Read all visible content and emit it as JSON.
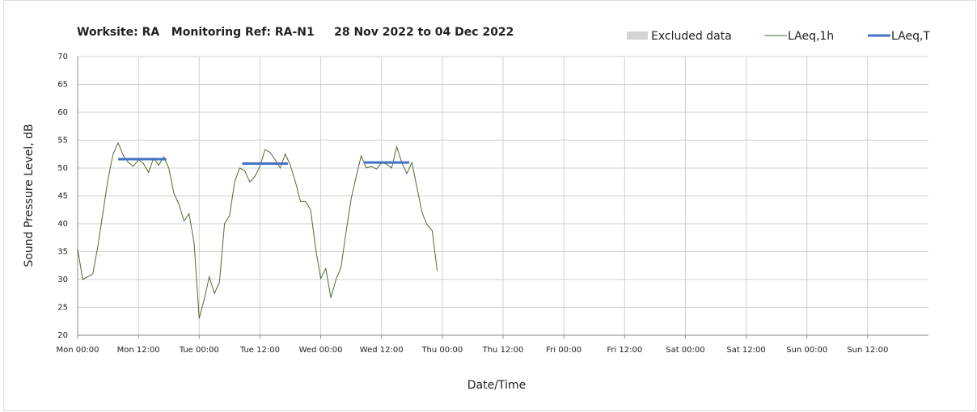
{
  "chart_data": {
    "type": "line",
    "title": "Worksite: RA   Monitoring Ref: RA-N1     28 Nov 2022 to 04 Dec 2022",
    "xlabel": "Date/Time",
    "ylabel": "Sound Pressure Level, dB",
    "xlim": [
      0,
      168
    ],
    "xticks": [
      {
        "value": 0,
        "label": "Mon 00:00"
      },
      {
        "value": 12,
        "label": "Mon 12:00"
      },
      {
        "value": 24,
        "label": "Tue 00:00"
      },
      {
        "value": 36,
        "label": "Tue 12:00"
      },
      {
        "value": 48,
        "label": "Wed 00:00"
      },
      {
        "value": 60,
        "label": "Wed 12:00"
      },
      {
        "value": 72,
        "label": "Thu 00:00"
      },
      {
        "value": 84,
        "label": "Thu 12:00"
      },
      {
        "value": 96,
        "label": "Fri 00:00"
      },
      {
        "value": 108,
        "label": "Fri 12:00"
      },
      {
        "value": 120,
        "label": "Sat 00:00"
      },
      {
        "value": 132,
        "label": "Sat 12:00"
      },
      {
        "value": 144,
        "label": "Sun 00:00"
      },
      {
        "value": 156,
        "label": "Sun 12:00"
      }
    ],
    "ylim": [
      20,
      70
    ],
    "yticks": [
      20,
      25,
      30,
      35,
      40,
      45,
      50,
      55,
      60,
      65,
      70
    ],
    "grid": true,
    "excluded": {
      "name": "Excluded data",
      "color": "#d4d4d4"
    },
    "series": [
      {
        "name": "LAeq,1h",
        "color": "#4f6b2f",
        "width": 1,
        "x": [
          0,
          1,
          2,
          3,
          4,
          5,
          6,
          7,
          8,
          9,
          10,
          11,
          12,
          13,
          14,
          15,
          16,
          17,
          18,
          19,
          20,
          21,
          22,
          23,
          24,
          25,
          26,
          27,
          28,
          29,
          30,
          31,
          32,
          33,
          34,
          35,
          36,
          37,
          38,
          39,
          40,
          41,
          42,
          43,
          44,
          45,
          46,
          47,
          48,
          49,
          50,
          51,
          52,
          53,
          54,
          55,
          56,
          57,
          58,
          59,
          60,
          61,
          62,
          63,
          64,
          65,
          66,
          67,
          68,
          69,
          70,
          71
        ],
        "values": [
          35.5,
          30,
          30.5,
          31,
          36,
          42,
          48,
          52.5,
          54.5,
          52.3,
          51,
          50.3,
          51.5,
          50.8,
          49.2,
          51.8,
          50.5,
          52,
          50,
          45.5,
          43.5,
          40.5,
          41.8,
          36.5,
          23,
          26.5,
          30.5,
          27.5,
          29.5,
          40,
          41.5,
          47.5,
          50,
          49.5,
          47.5,
          48.5,
          50.3,
          53.3,
          52.8,
          51.5,
          50,
          52.5,
          50.5,
          47.5,
          44,
          44,
          42.5,
          35.5,
          30.2,
          32,
          26.7,
          30,
          32.2,
          38.5,
          44.5,
          48.5,
          52.2,
          50,
          50.3,
          49.8,
          51,
          50.7,
          50,
          53.8,
          51,
          49,
          51,
          46.5,
          42,
          39.8,
          38.8,
          31.5
        ]
      },
      {
        "name": "LAeq,T",
        "color": "#4472c4",
        "width": 3,
        "x": [
          8,
          17.5,
          null,
          32.5,
          41.5,
          null,
          56.5,
          65.5
        ],
        "values": [
          51.6,
          51.6,
          null,
          50.8,
          50.8,
          null,
          51,
          51
        ]
      }
    ]
  }
}
